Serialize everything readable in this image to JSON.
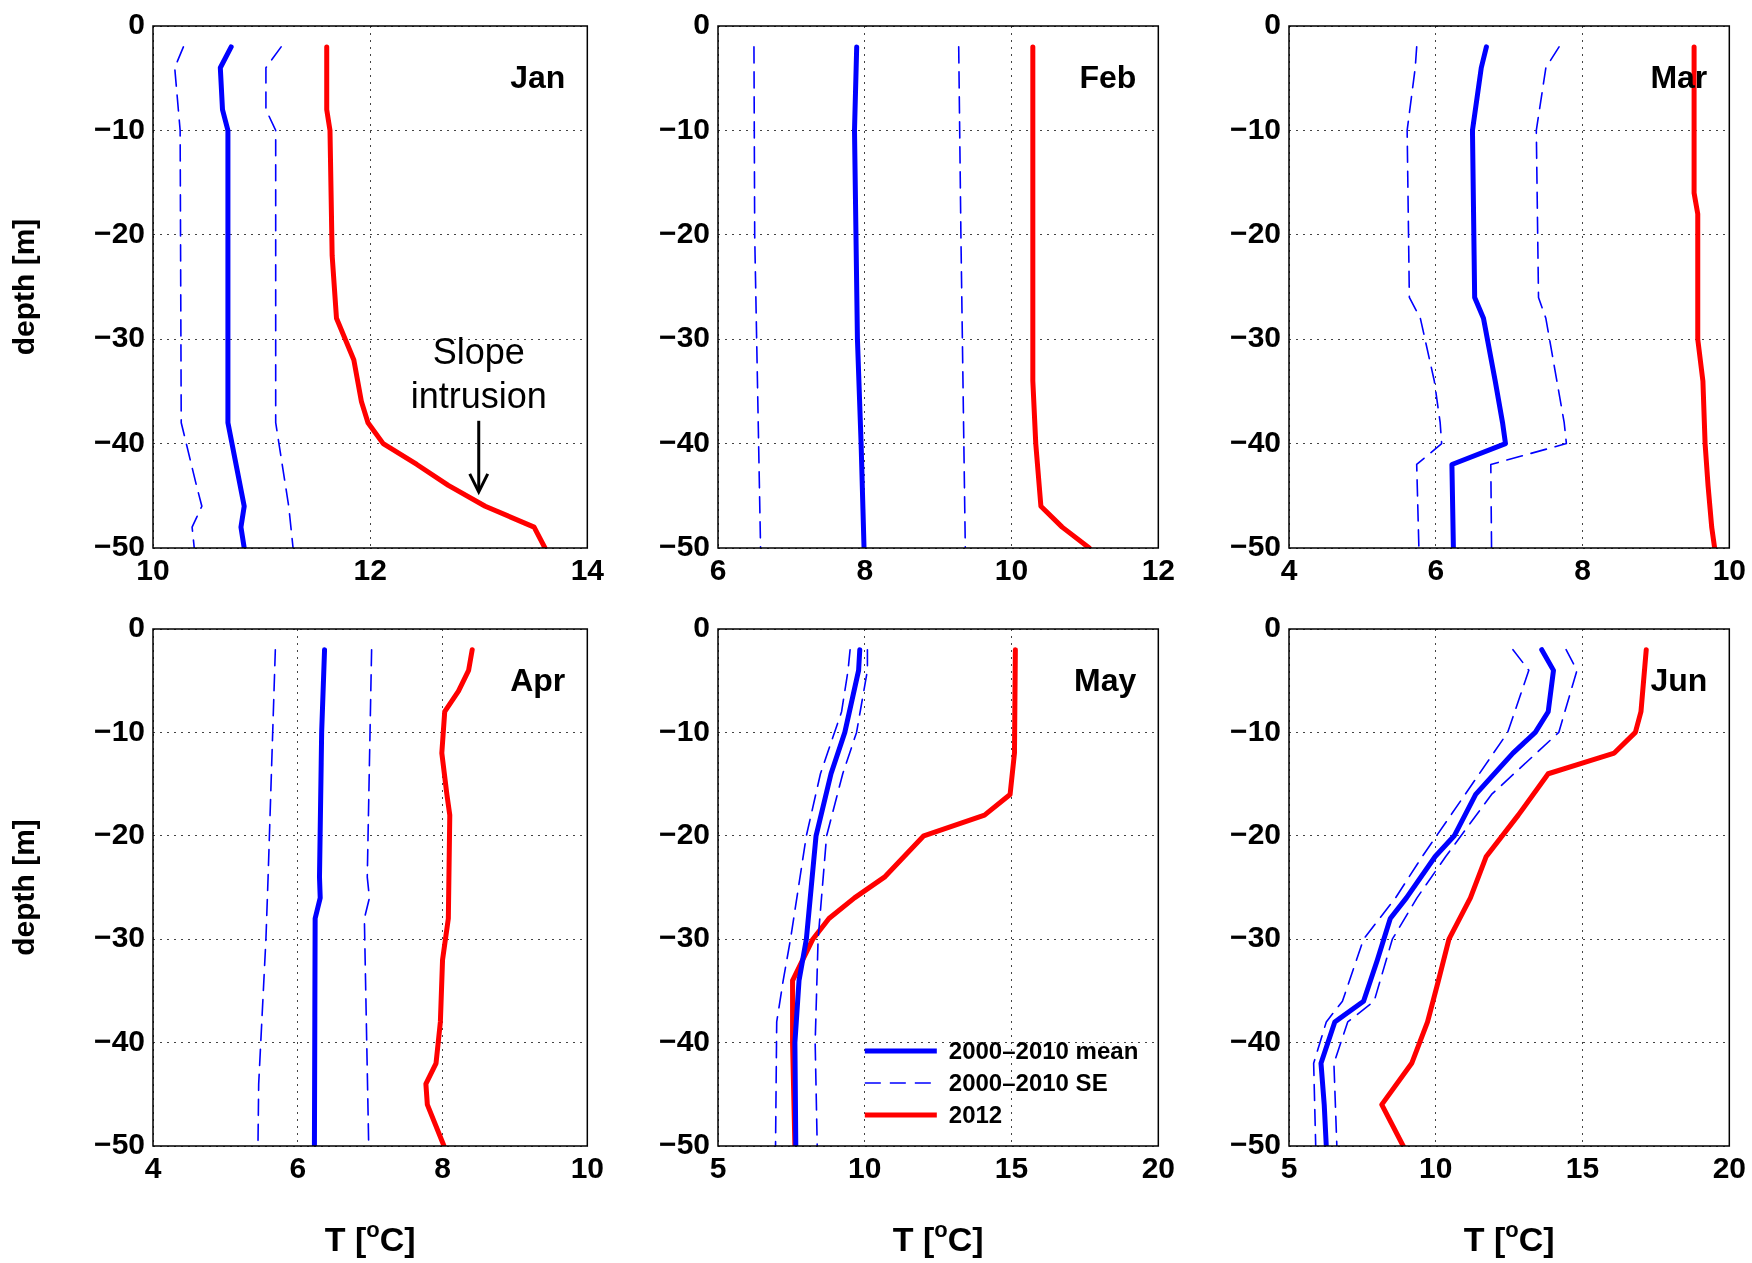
{
  "chart_data": [
    {
      "type": "line",
      "title": "Jan",
      "ylabel": "depth [m]",
      "xlim": [
        10,
        14
      ],
      "xticks": [
        10,
        12,
        14
      ],
      "ylim": [
        -50,
        0
      ],
      "yticks": [
        0,
        -10,
        -20,
        -30,
        -40,
        -50
      ],
      "grid": true,
      "annotations": [
        {
          "text": "Slope intrusion",
          "x": 13,
          "y": -45
        }
      ],
      "series": [
        {
          "color": "#0000ff",
          "line_style": "solid",
          "x": [
            10.72,
            10.62,
            10.64,
            10.69,
            10.69,
            10.84,
            10.81,
            10.84
          ],
          "values": [
            -2,
            -4,
            -8,
            -10,
            -38,
            -46,
            -48,
            -50
          ]
        },
        {
          "color": "#0000ff",
          "line_style": "dashed",
          "x": [
            10.28,
            10.2,
            10.25,
            10.26,
            10.4,
            10.45,
            10.36,
            10.38
          ],
          "values": [
            -2,
            -4,
            -10,
            -38,
            -44,
            -46,
            -48,
            -50
          ]
        },
        {
          "color": "#0000ff",
          "line_style": "dashed",
          "x": [
            11.18,
            11.04,
            11.04,
            11.13,
            11.13,
            11.25,
            11.29
          ],
          "values": [
            -2,
            -4,
            -8,
            -10,
            -38,
            -46,
            -50
          ]
        },
        {
          "color": "#ff0000",
          "line_style": "solid",
          "x": [
            11.6,
            11.6,
            11.63,
            11.65,
            11.69,
            11.85,
            11.92,
            11.98,
            12.12,
            12.43,
            12.72,
            13.06,
            13.51,
            13.61
          ],
          "values": [
            -2,
            -8,
            -10,
            -22,
            -28,
            -32,
            -36,
            -38,
            -40,
            -42,
            -44,
            -46,
            -48,
            -50
          ]
        }
      ]
    },
    {
      "type": "line",
      "title": "Feb",
      "xlim": [
        6,
        12
      ],
      "xticks": [
        6,
        8,
        10,
        12
      ],
      "ylim": [
        -50,
        0
      ],
      "yticks": [
        0,
        -10,
        -20,
        -30,
        -40,
        -50
      ],
      "grid": true,
      "series": [
        {
          "color": "#0000ff",
          "line_style": "solid",
          "x": [
            7.89,
            7.86,
            7.9,
            7.95,
            7.99
          ],
          "values": [
            -2,
            -10,
            -30,
            -40,
            -50
          ]
        },
        {
          "color": "#0000ff",
          "line_style": "dashed",
          "x": [
            6.49,
            6.5,
            6.58
          ],
          "values": [
            -2,
            -20,
            -50
          ]
        },
        {
          "color": "#0000ff",
          "line_style": "dashed",
          "x": [
            9.28,
            9.31,
            9.37
          ],
          "values": [
            -2,
            -20,
            -50
          ]
        },
        {
          "color": "#ff0000",
          "line_style": "solid",
          "x": [
            10.29,
            10.29,
            10.33,
            10.4,
            10.69,
            11.06
          ],
          "values": [
            -2,
            -34,
            -40,
            -46,
            -48,
            -50
          ]
        }
      ]
    },
    {
      "type": "line",
      "title": "Mar",
      "xlim": [
        4,
        10
      ],
      "xticks": [
        4,
        6,
        8,
        10
      ],
      "ylim": [
        -50,
        0
      ],
      "yticks": [
        0,
        -10,
        -20,
        -30,
        -40,
        -50
      ],
      "grid": true,
      "series": [
        {
          "color": "#0000ff",
          "line_style": "solid",
          "x": [
            6.69,
            6.62,
            6.5,
            6.53,
            6.65,
            6.81,
            6.91,
            6.95,
            6.22,
            6.24
          ],
          "values": [
            -2,
            -4,
            -10,
            -26,
            -28,
            -34,
            -38,
            -40,
            -42,
            -50
          ]
        },
        {
          "color": "#0000ff",
          "line_style": "dashed",
          "x": [
            5.74,
            5.72,
            5.61,
            5.64,
            5.79,
            5.98,
            6.06,
            6.08,
            5.74,
            5.77
          ],
          "values": [
            -2,
            -4,
            -10,
            -26,
            -28,
            -34,
            -38,
            -40,
            -42,
            -50
          ]
        },
        {
          "color": "#0000ff",
          "line_style": "dashed",
          "x": [
            7.68,
            7.5,
            7.37,
            7.4,
            7.5,
            7.65,
            7.75,
            7.78,
            6.75,
            6.76
          ],
          "values": [
            -2,
            -4,
            -10,
            -26,
            -28,
            -34,
            -38,
            -40,
            -42,
            -50
          ]
        },
        {
          "color": "#ff0000",
          "line_style": "solid",
          "x": [
            9.52,
            9.52,
            9.57,
            9.57,
            9.64,
            9.67,
            9.71,
            9.76,
            9.8
          ],
          "values": [
            -2,
            -16,
            -18,
            -30,
            -34,
            -40,
            -44,
            -48,
            -50
          ]
        }
      ]
    },
    {
      "type": "line",
      "title": "Apr",
      "xlabel": "T [$^{o}$C]",
      "ylabel": "depth [m]",
      "xlim": [
        4,
        10
      ],
      "xticks": [
        4,
        6,
        8,
        10
      ],
      "ylim": [
        -50,
        0
      ],
      "yticks": [
        0,
        -10,
        -20,
        -30,
        -40,
        -50
      ],
      "grid": true,
      "series": [
        {
          "color": "#0000ff",
          "line_style": "solid",
          "x": [
            6.37,
            6.33,
            6.3,
            6.31,
            6.24,
            6.23
          ],
          "values": [
            -2,
            -10,
            -24,
            -26,
            -28,
            -50
          ]
        },
        {
          "color": "#0000ff",
          "line_style": "dashed",
          "x": [
            5.69,
            5.59,
            5.56,
            5.46,
            5.45
          ],
          "values": [
            -2,
            -24,
            -30,
            -44,
            -50
          ]
        },
        {
          "color": "#0000ff",
          "line_style": "dashed",
          "x": [
            7.02,
            6.96,
            6.99,
            6.92,
            6.98
          ],
          "values": [
            -2,
            -24,
            -26,
            -28,
            -50
          ]
        },
        {
          "color": "#ff0000",
          "line_style": "solid",
          "x": [
            8.41,
            8.36,
            8.22,
            8.03,
            7.99,
            8.06,
            8.1,
            8.08,
            8.0,
            7.97,
            7.91,
            7.77,
            7.79,
            8.02
          ],
          "values": [
            -2,
            -4,
            -6,
            -8,
            -12,
            -16,
            -18,
            -28,
            -32,
            -38,
            -42,
            -44,
            -46,
            -50
          ]
        }
      ]
    },
    {
      "type": "line",
      "title": "May",
      "xlabel": "T [$^{o}$C]",
      "xlim": [
        5,
        20
      ],
      "xticks": [
        5,
        10,
        15,
        20
      ],
      "ylim": [
        -50,
        0
      ],
      "yticks": [
        0,
        -10,
        -20,
        -30,
        -40,
        -50
      ],
      "grid": true,
      "legend": "bottom right",
      "series": [
        {
          "name": "2000–2010 mean",
          "color": "#0000ff",
          "line_style": "solid",
          "x": [
            9.83,
            9.79,
            9.32,
            8.85,
            8.34,
            8.01,
            7.76,
            7.62,
            7.65
          ],
          "values": [
            -2,
            -4,
            -10,
            -14,
            -20,
            -30,
            -34,
            -40,
            -50
          ]
        },
        {
          "name": "2000–2010 SE",
          "color": "#0000ff",
          "line_style": "dashed",
          "x": [
            9.5,
            9.43,
            9.21,
            8.49,
            8.01,
            7.47,
            7.22,
            7.0,
            6.96
          ],
          "values": [
            -2,
            -4,
            -8,
            -14,
            -20,
            -30,
            -34,
            -38,
            -50
          ]
        },
        {
          "color": "#0000ff",
          "line_style": "dashed",
          "x": [
            10.09,
            10.09,
            9.72,
            9.25,
            8.7,
            8.41,
            8.31,
            8.38
          ],
          "values": [
            -2,
            -4,
            -10,
            -14,
            -20,
            -30,
            -40,
            -50
          ]
        },
        {
          "name": "2012",
          "color": "#ff0000",
          "line_style": "solid",
          "x": [
            15.13,
            15.1,
            14.95,
            14.08,
            12.01,
            10.67,
            9.65,
            8.78,
            8.23,
            7.54,
            7.54,
            7.62
          ],
          "values": [
            -2,
            -12,
            -16,
            -18,
            -20,
            -24,
            -26,
            -28,
            -30,
            -34,
            -40,
            -50
          ]
        }
      ]
    },
    {
      "type": "line",
      "title": "Jun",
      "xlabel": "T [$^{o}$C]",
      "xlim": [
        5,
        20
      ],
      "xticks": [
        5,
        10,
        15,
        20
      ],
      "ylim": [
        -50,
        0
      ],
      "yticks": [
        0,
        -10,
        -20,
        -30,
        -40,
        -50
      ],
      "grid": true,
      "series": [
        {
          "color": "#0000ff",
          "line_style": "solid",
          "x": [
            13.61,
            14.01,
            13.83,
            13.39,
            12.63,
            11.36,
            10.63,
            9.98,
            9.0,
            8.45,
            8.01,
            7.54,
            6.56,
            6.09,
            6.2,
            6.27
          ],
          "values": [
            -2,
            -4,
            -8,
            -10,
            -12,
            -16,
            -20,
            -22,
            -26,
            -28,
            -32,
            -36,
            -38,
            -42,
            -46,
            -50
          ]
        },
        {
          "color": "#0000ff",
          "line_style": "dashed",
          "x": [
            12.63,
            13.17,
            12.45,
            11.0,
            9.54,
            8.63,
            7.54,
            6.82,
            6.27,
            5.84,
            5.91
          ],
          "values": [
            -2,
            -4,
            -10,
            -16,
            -22,
            -26,
            -30,
            -36,
            -38,
            -42,
            -50
          ]
        },
        {
          "color": "#0000ff",
          "line_style": "dashed",
          "x": [
            14.44,
            14.81,
            14.19,
            11.9,
            10.34,
            9.36,
            8.52,
            7.9,
            7.0,
            6.53,
            6.63
          ],
          "values": [
            -2,
            -4,
            -10,
            -16,
            -22,
            -26,
            -30,
            -36,
            -38,
            -42,
            -50
          ]
        },
        {
          "color": "#ff0000",
          "line_style": "solid",
          "x": [
            17.17,
            16.99,
            16.8,
            16.08,
            13.83,
            12.81,
            11.72,
            11.18,
            10.45,
            10.09,
            9.72,
            9.18,
            8.16,
            8.89
          ],
          "values": [
            -2,
            -8,
            -10,
            -12,
            -14,
            -18,
            -22,
            -26,
            -30,
            -34,
            -38,
            -42,
            -46,
            -50
          ]
        }
      ]
    }
  ]
}
